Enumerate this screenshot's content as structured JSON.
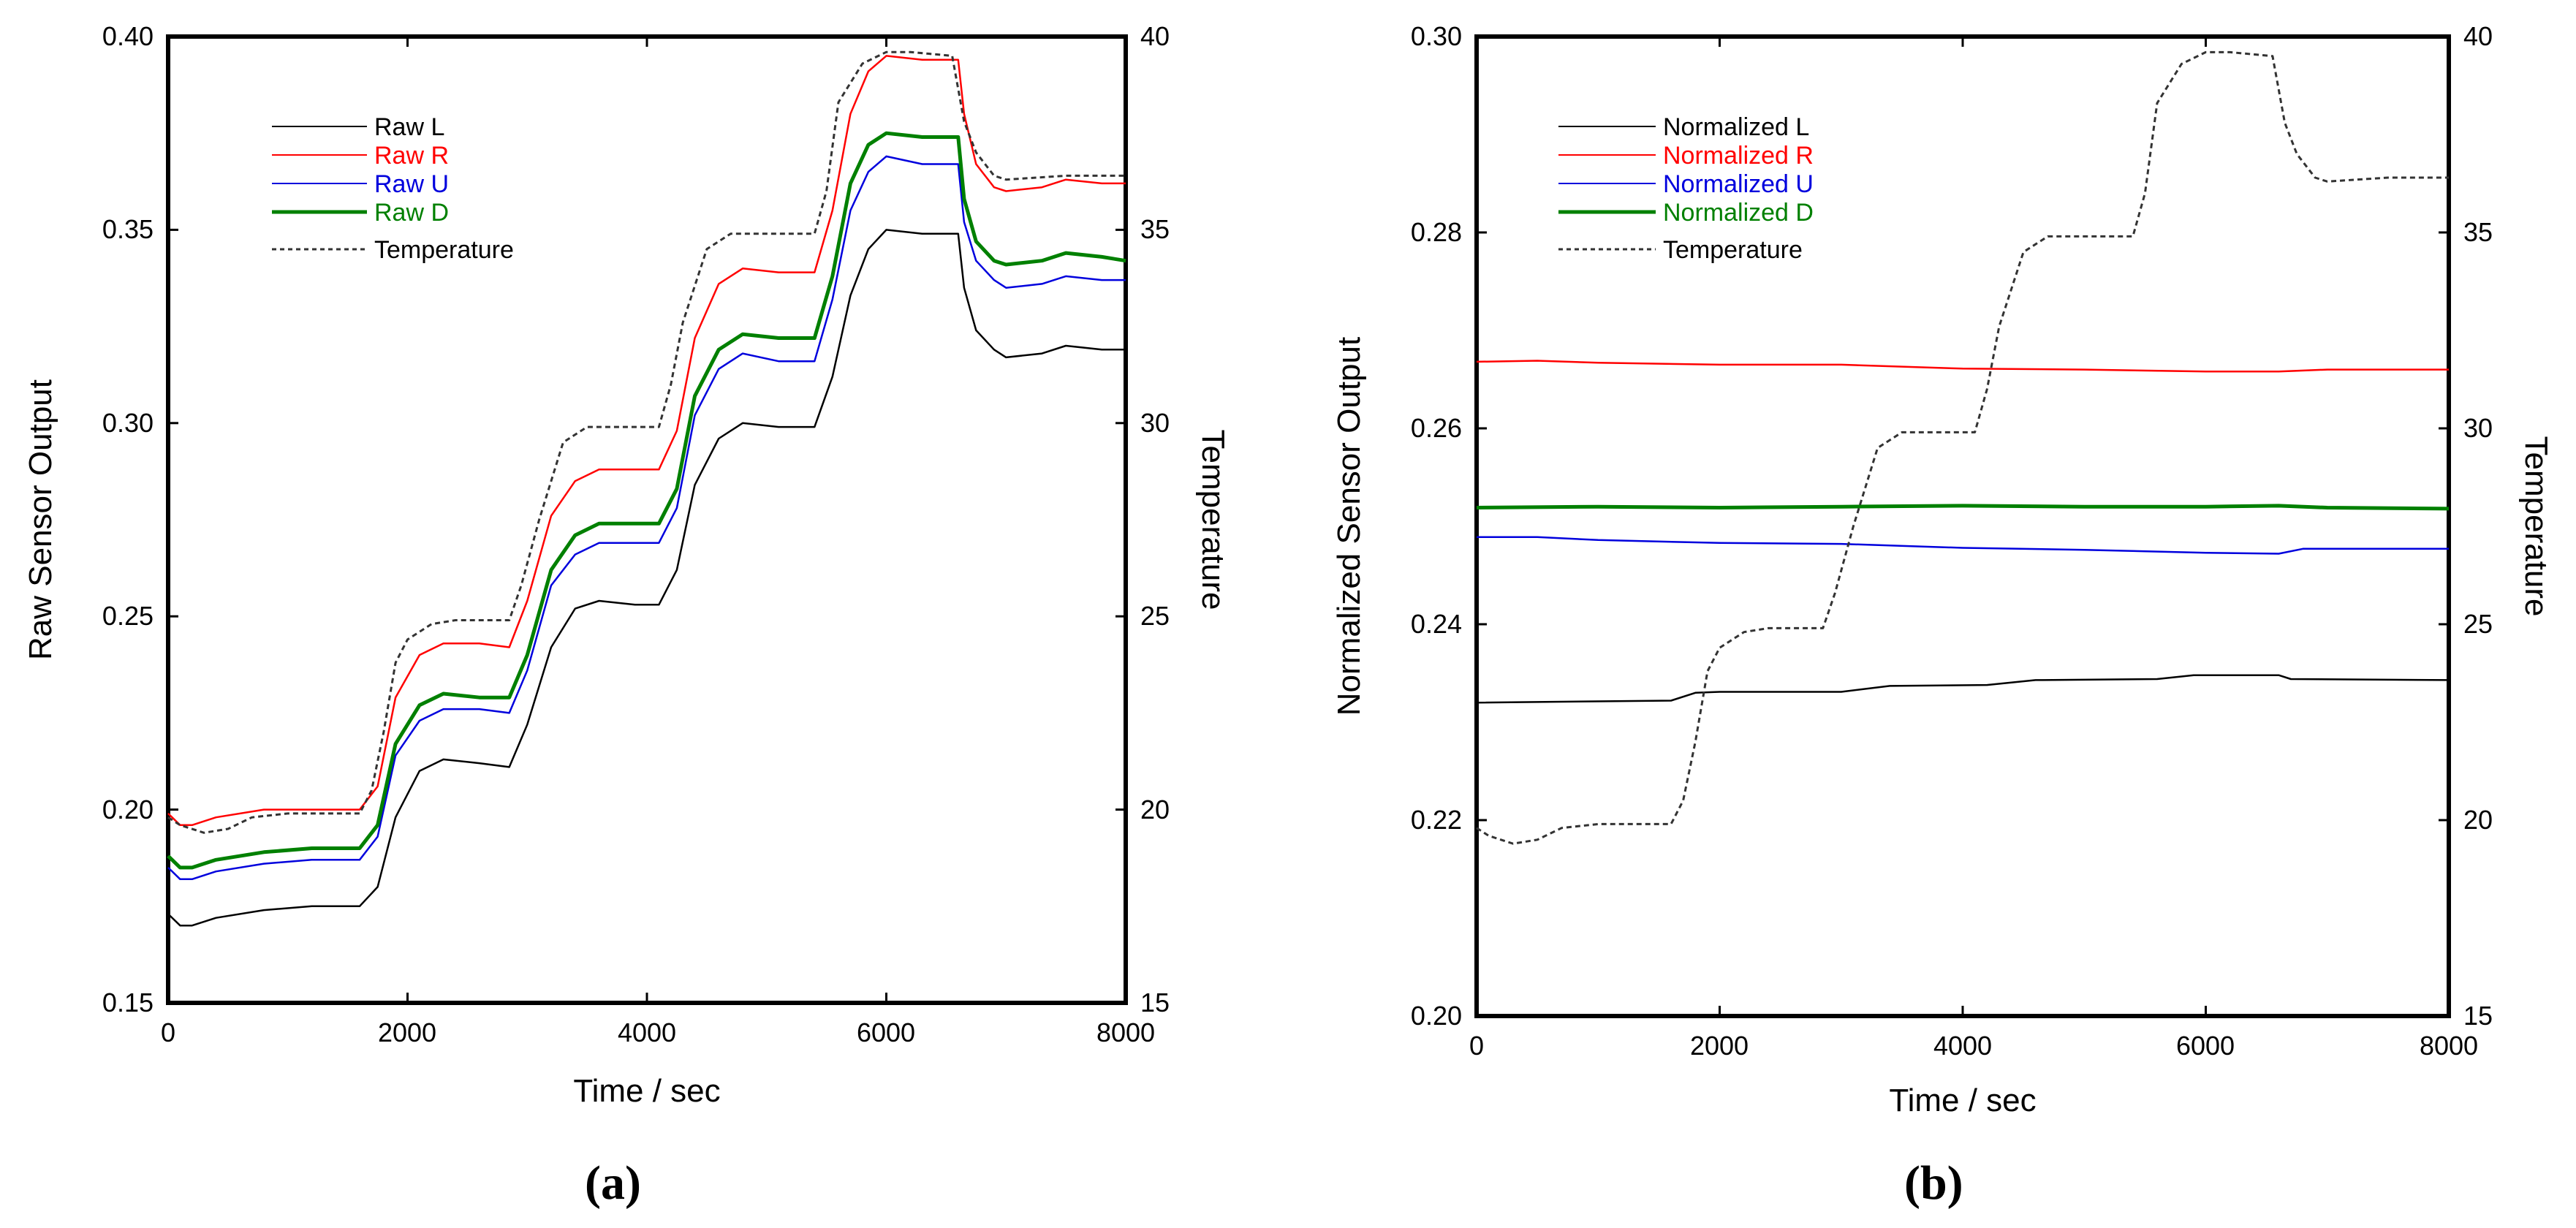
{
  "figure": {
    "panels": [
      {
        "caption": "(a)",
        "yaxis_label": "Raw Sensor Output",
        "y2axis_label": "Temperature",
        "xaxis_label": "Time / sec",
        "y_ticks": [
          "0.15",
          "0.20",
          "0.25",
          "0.30",
          "0.35",
          "0.40"
        ],
        "y2_ticks": [
          "15",
          "20",
          "25",
          "30",
          "35",
          "40"
        ],
        "x_ticks": [
          "0",
          "2000",
          "4000",
          "6000",
          "8000"
        ],
        "legend": [
          "Raw L",
          "Raw R",
          "Raw U",
          "Raw D",
          "Temperature"
        ]
      },
      {
        "caption": "(b)",
        "yaxis_label": "Normalized Sensor Output",
        "y2axis_label": "Temperature",
        "xaxis_label": "Time / sec",
        "y_ticks": [
          "0.20",
          "0.22",
          "0.24",
          "0.26",
          "0.28",
          "0.30"
        ],
        "y2_ticks": [
          "15",
          "20",
          "25",
          "30",
          "35",
          "40"
        ],
        "x_ticks": [
          "0",
          "2000",
          "4000",
          "6000",
          "8000"
        ],
        "legend": [
          "Normalized L",
          "Normalized R",
          "Normalized U",
          "Normalized D",
          "Temperature"
        ]
      }
    ]
  },
  "colors": {
    "L": "#000000",
    "R": "#ff0000",
    "U": "#0000dd",
    "D": "#008000",
    "temp": "#333333"
  },
  "chart_data": [
    {
      "type": "line",
      "title": "(a)",
      "xlabel": "Time / sec",
      "ylabel": "Raw Sensor Output",
      "y2label": "Temperature",
      "xlim": [
        0,
        8000
      ],
      "ylim": [
        0.15,
        0.4
      ],
      "y2lim": [
        15,
        40
      ],
      "legend_position": "top-left",
      "series": [
        {
          "name": "Raw L",
          "color": "#000000",
          "axis": "left",
          "x": [
            0,
            100,
            200,
            400,
            800,
            1200,
            1600,
            1750,
            1900,
            2100,
            2300,
            2600,
            2850,
            3000,
            3200,
            3400,
            3600,
            3900,
            4100,
            4250,
            4400,
            4600,
            4800,
            5100,
            5400,
            5550,
            5700,
            5850,
            6000,
            6300,
            6600,
            6650,
            6750,
            6900,
            7000,
            7300,
            7500,
            7800,
            8000
          ],
          "y": [
            0.173,
            0.17,
            0.17,
            0.172,
            0.174,
            0.175,
            0.175,
            0.18,
            0.198,
            0.21,
            0.213,
            0.212,
            0.211,
            0.222,
            0.242,
            0.252,
            0.254,
            0.253,
            0.253,
            0.262,
            0.284,
            0.296,
            0.3,
            0.299,
            0.299,
            0.312,
            0.333,
            0.345,
            0.35,
            0.349,
            0.349,
            0.335,
            0.324,
            0.319,
            0.317,
            0.318,
            0.32,
            0.319,
            0.319
          ]
        },
        {
          "name": "Raw R",
          "color": "#ff0000",
          "axis": "left",
          "x": [
            0,
            100,
            200,
            400,
            800,
            1200,
            1600,
            1750,
            1900,
            2100,
            2300,
            2600,
            2850,
            3000,
            3200,
            3400,
            3600,
            3900,
            4100,
            4250,
            4400,
            4600,
            4800,
            5100,
            5400,
            5550,
            5700,
            5850,
            6000,
            6300,
            6600,
            6650,
            6750,
            6900,
            7000,
            7300,
            7500,
            7800,
            8000
          ],
          "y": [
            0.199,
            0.196,
            0.196,
            0.198,
            0.2,
            0.2,
            0.2,
            0.206,
            0.229,
            0.24,
            0.243,
            0.243,
            0.242,
            0.254,
            0.276,
            0.285,
            0.288,
            0.288,
            0.288,
            0.298,
            0.322,
            0.336,
            0.34,
            0.339,
            0.339,
            0.355,
            0.38,
            0.391,
            0.395,
            0.394,
            0.394,
            0.38,
            0.367,
            0.361,
            0.36,
            0.361,
            0.363,
            0.362,
            0.362
          ]
        },
        {
          "name": "Raw U",
          "color": "#0000dd",
          "axis": "left",
          "x": [
            0,
            100,
            200,
            400,
            800,
            1200,
            1600,
            1750,
            1900,
            2100,
            2300,
            2600,
            2850,
            3000,
            3200,
            3400,
            3600,
            3900,
            4100,
            4250,
            4400,
            4600,
            4800,
            5100,
            5400,
            5550,
            5700,
            5850,
            6000,
            6300,
            6600,
            6650,
            6750,
            6900,
            7000,
            7300,
            7500,
            7800,
            8000
          ],
          "y": [
            0.185,
            0.182,
            0.182,
            0.184,
            0.186,
            0.187,
            0.187,
            0.193,
            0.214,
            0.223,
            0.226,
            0.226,
            0.225,
            0.236,
            0.258,
            0.266,
            0.269,
            0.269,
            0.269,
            0.278,
            0.302,
            0.314,
            0.318,
            0.316,
            0.316,
            0.332,
            0.355,
            0.365,
            0.369,
            0.367,
            0.367,
            0.352,
            0.342,
            0.337,
            0.335,
            0.336,
            0.338,
            0.337,
            0.337
          ]
        },
        {
          "name": "Raw D",
          "color": "#008000",
          "axis": "left",
          "x": [
            0,
            100,
            200,
            400,
            800,
            1200,
            1600,
            1750,
            1900,
            2100,
            2300,
            2600,
            2850,
            3000,
            3200,
            3400,
            3600,
            3900,
            4100,
            4250,
            4400,
            4600,
            4800,
            5100,
            5400,
            5550,
            5700,
            5850,
            6000,
            6300,
            6600,
            6650,
            6750,
            6900,
            7000,
            7300,
            7500,
            7800,
            8000
          ],
          "y": [
            0.188,
            0.185,
            0.185,
            0.187,
            0.189,
            0.19,
            0.19,
            0.196,
            0.217,
            0.227,
            0.23,
            0.229,
            0.229,
            0.24,
            0.262,
            0.271,
            0.274,
            0.274,
            0.274,
            0.283,
            0.307,
            0.319,
            0.323,
            0.322,
            0.322,
            0.338,
            0.362,
            0.372,
            0.375,
            0.374,
            0.374,
            0.358,
            0.347,
            0.342,
            0.341,
            0.342,
            0.344,
            0.343,
            0.342
          ]
        },
        {
          "name": "Temperature",
          "color": "#333333",
          "axis": "right",
          "dashed": true,
          "x": [
            0,
            100,
            300,
            500,
            700,
            1000,
            1600,
            1700,
            1800,
            1900,
            2000,
            2200,
            2400,
            2850,
            2950,
            3100,
            3300,
            3500,
            3700,
            4100,
            4200,
            4300,
            4500,
            4700,
            5400,
            5500,
            5600,
            5800,
            6000,
            6200,
            6550,
            6650,
            6750,
            6900,
            7000,
            7500,
            8000
          ],
          "y": [
            19.8,
            19.6,
            19.4,
            19.5,
            19.8,
            19.9,
            19.9,
            20.5,
            22.0,
            23.8,
            24.4,
            24.8,
            24.9,
            24.9,
            25.8,
            27.5,
            29.5,
            29.9,
            29.9,
            29.9,
            31.0,
            32.6,
            34.5,
            34.9,
            34.9,
            36.0,
            38.3,
            39.3,
            39.6,
            39.6,
            39.5,
            37.8,
            37.0,
            36.4,
            36.3,
            36.4,
            36.4
          ]
        }
      ]
    },
    {
      "type": "line",
      "title": "(b)",
      "xlabel": "Time / sec",
      "ylabel": "Normalized Sensor Output",
      "y2label": "Temperature",
      "xlim": [
        0,
        8000
      ],
      "ylim": [
        0.2,
        0.3
      ],
      "y2lim": [
        15,
        40
      ],
      "legend_position": "top-left",
      "series": [
        {
          "name": "Normalized L",
          "color": "#000000",
          "axis": "left",
          "x": [
            0,
            1600,
            1800,
            2000,
            3000,
            3400,
            4200,
            4600,
            5600,
            5900,
            6600,
            6700,
            8000
          ],
          "y": [
            0.232,
            0.2322,
            0.233,
            0.2331,
            0.2331,
            0.2337,
            0.2338,
            0.2343,
            0.2344,
            0.2348,
            0.2348,
            0.2344,
            0.2343
          ]
        },
        {
          "name": "Normalized R",
          "color": "#ff0000",
          "axis": "left",
          "x": [
            0,
            500,
            1000,
            2000,
            3000,
            4000,
            5000,
            6000,
            6600,
            7000,
            8000
          ],
          "y": [
            0.2668,
            0.2669,
            0.2667,
            0.2665,
            0.2665,
            0.2661,
            0.266,
            0.2658,
            0.2658,
            0.266,
            0.266
          ]
        },
        {
          "name": "Normalized U",
          "color": "#0000dd",
          "axis": "left",
          "x": [
            0,
            500,
            1000,
            2000,
            3000,
            4000,
            5000,
            6000,
            6600,
            6800,
            8000
          ],
          "y": [
            0.2489,
            0.2489,
            0.2486,
            0.2483,
            0.2482,
            0.2478,
            0.2476,
            0.2473,
            0.2472,
            0.2477,
            0.2477
          ]
        },
        {
          "name": "Normalized D",
          "color": "#008000",
          "axis": "left",
          "x": [
            0,
            1000,
            2000,
            3000,
            4000,
            5000,
            6000,
            6600,
            7000,
            8000
          ],
          "y": [
            0.2519,
            0.252,
            0.2519,
            0.252,
            0.2521,
            0.252,
            0.252,
            0.2521,
            0.2519,
            0.2518
          ]
        },
        {
          "name": "Temperature",
          "color": "#333333",
          "axis": "right",
          "dashed": true,
          "x": [
            0,
            100,
            300,
            500,
            700,
            1000,
            1600,
            1700,
            1800,
            1900,
            2000,
            2200,
            2400,
            2850,
            2950,
            3100,
            3300,
            3500,
            3700,
            4100,
            4200,
            4300,
            4500,
            4700,
            5400,
            5500,
            5600,
            5800,
            6000,
            6200,
            6550,
            6650,
            6750,
            6900,
            7000,
            7500,
            8000
          ],
          "y": [
            19.8,
            19.6,
            19.4,
            19.5,
            19.8,
            19.9,
            19.9,
            20.5,
            22.0,
            23.8,
            24.4,
            24.8,
            24.9,
            24.9,
            25.8,
            27.5,
            29.5,
            29.9,
            29.9,
            29.9,
            31.0,
            32.6,
            34.5,
            34.9,
            34.9,
            36.0,
            38.3,
            39.3,
            39.6,
            39.6,
            39.5,
            37.8,
            37.0,
            36.4,
            36.3,
            36.4,
            36.4
          ]
        }
      ]
    }
  ]
}
